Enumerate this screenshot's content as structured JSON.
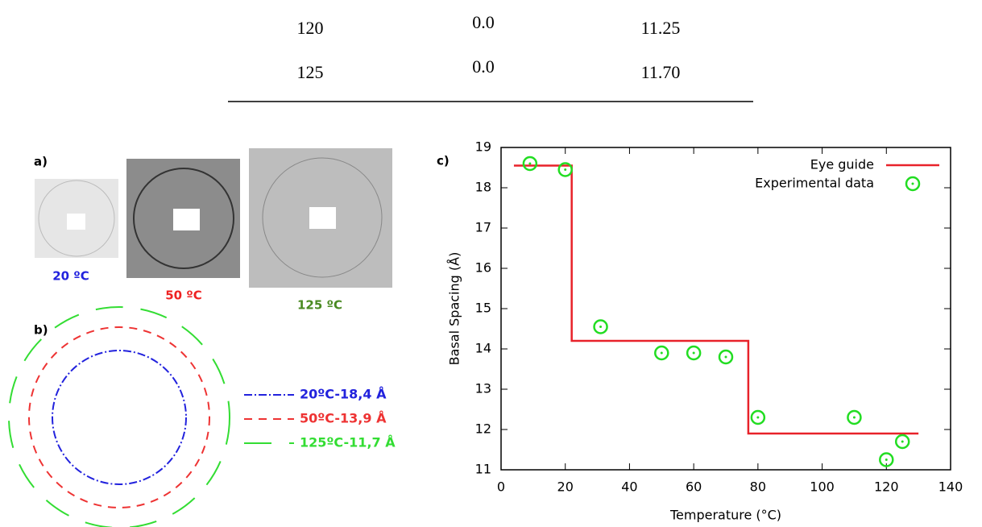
{
  "table": {
    "rows": [
      [
        "120",
        "0.0",
        "11.25"
      ],
      [
        "125",
        "0.0",
        "11.70"
      ]
    ]
  },
  "panel_a": {
    "label": "a)",
    "images": [
      {
        "caption": "20 ºC",
        "color": "#2222dd"
      },
      {
        "caption": "50 ºC",
        "color": "#ee2222"
      },
      {
        "caption": "125 ºC",
        "color": "#4a8a22"
      }
    ]
  },
  "panel_b": {
    "label": "b)",
    "legend": [
      {
        "name": "20ºC-18,4 Å",
        "color": "#2222dd"
      },
      {
        "name": "50ºC-13,9 Å",
        "color": "#ee3333"
      },
      {
        "name": "125ºC-11,7 Å",
        "color": "#33dd33"
      }
    ]
  },
  "chart_data": {
    "type": "line",
    "label": "c)",
    "x_label": "Temperature (°C)",
    "y_label": "Basal Spacing (Å)",
    "xlim": [
      0,
      140
    ],
    "xticks": [
      0,
      20,
      40,
      60,
      80,
      100,
      120,
      140
    ],
    "ylim": [
      11,
      19
    ],
    "yticks": [
      11,
      12,
      13,
      14,
      15,
      16,
      17,
      18,
      19
    ],
    "legend": "upper right",
    "series": [
      {
        "name": "Eye guide",
        "color": "#e8222a",
        "type": "line",
        "x": [
          4,
          22,
          22,
          77,
          77,
          130
        ],
        "values": [
          18.55,
          18.55,
          14.2,
          14.2,
          11.9,
          11.9
        ]
      },
      {
        "name": "Experimental data",
        "color": "#22dd22",
        "type": "scatter",
        "x": [
          9,
          20,
          31,
          50,
          60,
          70,
          80,
          110,
          120,
          125
        ],
        "values": [
          18.6,
          18.45,
          14.55,
          13.9,
          13.9,
          13.8,
          12.3,
          12.3,
          11.25,
          11.7
        ]
      }
    ]
  }
}
